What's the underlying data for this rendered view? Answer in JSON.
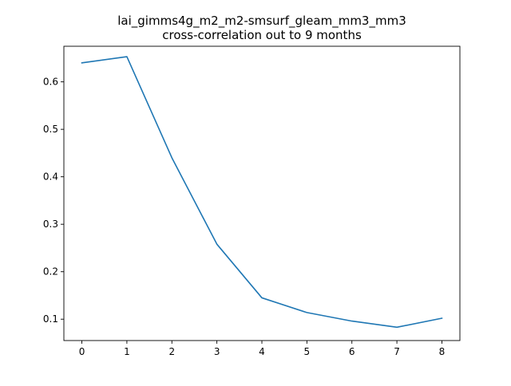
{
  "chart_data": {
    "type": "line",
    "title_line1": "lai_gimms4g_m2_m2-smsurf_gleam_mm3_mm3",
    "title_line2": "cross-correlation out to 9 months",
    "xlabel": "",
    "ylabel": "",
    "x": [
      0,
      1,
      2,
      3,
      4,
      5,
      6,
      7,
      8
    ],
    "series": [
      {
        "values": [
          0.64,
          0.653,
          0.44,
          0.258,
          0.145,
          0.114,
          0.096,
          0.083,
          0.102
        ]
      }
    ],
    "xlim": [
      -0.4,
      8.4
    ],
    "ylim": [
      0.055,
      0.675
    ],
    "xticks": [
      0,
      1,
      2,
      3,
      4,
      5,
      6,
      7,
      8
    ],
    "yticks": [
      0.1,
      0.2,
      0.3,
      0.4,
      0.5,
      0.6
    ],
    "ytick_labels": [
      "0.1",
      "0.2",
      "0.3",
      "0.4",
      "0.5",
      "0.6"
    ],
    "line_color": "#1f77b4",
    "grid": false,
    "legend": "none"
  }
}
